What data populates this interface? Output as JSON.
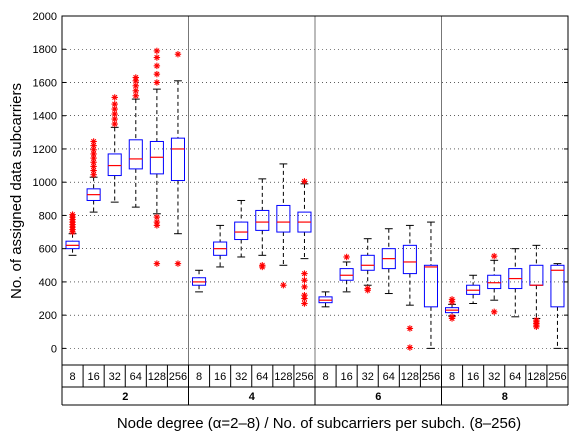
{
  "chart_data": {
    "type": "box",
    "ylabel": "No. of assigned data subcarriers",
    "xlabel": "Node degree (α=2–8) / No. of subcarriers per subch. (8–256)",
    "ylim": [
      -100,
      2000
    ],
    "yticks": [
      0,
      200,
      400,
      600,
      800,
      1000,
      1200,
      1400,
      1600,
      1800,
      2000
    ],
    "grid": true,
    "groups": [
      {
        "label": "2",
        "boxes": [
          {
            "category": "8",
            "whisker_low": 560,
            "q1": 600,
            "median": 620,
            "q3": 645,
            "whisker_high": 690,
            "outliers": [
              700,
              715,
              730,
              745,
              760,
              775,
              790,
              805
            ]
          },
          {
            "category": "16",
            "whisker_low": 820,
            "q1": 890,
            "median": 925,
            "q3": 960,
            "whisker_high": 1030,
            "outliers": [
              1045,
              1070,
              1095,
              1120,
              1145,
              1170,
              1195,
              1220,
              1245
            ]
          },
          {
            "category": "32",
            "whisker_low": 880,
            "q1": 1040,
            "median": 1100,
            "q3": 1170,
            "whisker_high": 1330,
            "outliers": [
              1350,
              1380,
              1410,
              1440,
              1470,
              1510
            ]
          },
          {
            "category": "64",
            "whisker_low": 850,
            "q1": 1080,
            "median": 1140,
            "q3": 1255,
            "whisker_high": 1500,
            "outliers": [
              1520,
              1550,
              1580,
              1610,
              1630
            ]
          },
          {
            "category": "128",
            "whisker_low": 810,
            "q1": 1050,
            "median": 1150,
            "q3": 1245,
            "whisker_high": 1560,
            "outliers": [
              510,
              740,
              760,
              790,
              1600,
              1650,
              1700,
              1750,
              1790
            ]
          },
          {
            "category": "256",
            "whisker_low": 690,
            "q1": 1010,
            "median": 1200,
            "q3": 1265,
            "whisker_high": 1610,
            "outliers": [
              510,
              1770
            ]
          }
        ]
      },
      {
        "label": "4",
        "boxes": [
          {
            "category": "8",
            "whisker_low": 340,
            "q1": 380,
            "median": 400,
            "q3": 425,
            "whisker_high": 470,
            "outliers": []
          },
          {
            "category": "16",
            "whisker_low": 490,
            "q1": 560,
            "median": 600,
            "q3": 640,
            "whisker_high": 740,
            "outliers": []
          },
          {
            "category": "32",
            "whisker_low": 550,
            "q1": 655,
            "median": 700,
            "q3": 760,
            "whisker_high": 890,
            "outliers": []
          },
          {
            "category": "64",
            "whisker_low": 560,
            "q1": 710,
            "median": 760,
            "q3": 830,
            "whisker_high": 1020,
            "outliers": [
              490,
              500
            ]
          },
          {
            "category": "128",
            "whisker_low": 500,
            "q1": 700,
            "median": 760,
            "q3": 860,
            "whisker_high": 1110,
            "outliers": [
              380
            ]
          },
          {
            "category": "256",
            "whisker_low": 540,
            "q1": 700,
            "median": 760,
            "q3": 820,
            "whisker_high": 990,
            "outliers": [
              1005,
              450,
              410,
              370,
              320,
              300,
              270
            ]
          }
        ]
      },
      {
        "label": "6",
        "boxes": [
          {
            "category": "8",
            "whisker_low": 250,
            "q1": 275,
            "median": 290,
            "q3": 310,
            "whisker_high": 340,
            "outliers": []
          },
          {
            "category": "16",
            "whisker_low": 340,
            "q1": 410,
            "median": 440,
            "q3": 480,
            "whisker_high": 520,
            "outliers": [
              550
            ]
          },
          {
            "category": "32",
            "whisker_low": 380,
            "q1": 470,
            "median": 500,
            "q3": 560,
            "whisker_high": 660,
            "outliers": [
              350,
              360
            ]
          },
          {
            "category": "64",
            "whisker_low": 330,
            "q1": 480,
            "median": 540,
            "q3": 600,
            "whisker_high": 720,
            "outliers": []
          },
          {
            "category": "128",
            "whisker_low": 260,
            "q1": 450,
            "median": 520,
            "q3": 620,
            "whisker_high": 740,
            "outliers": [
              120,
              5
            ]
          },
          {
            "category": "256",
            "whisker_low": 0,
            "q1": 250,
            "median": 490,
            "q3": 500,
            "whisker_high": 760,
            "outliers": []
          }
        ]
      },
      {
        "label": "8",
        "boxes": [
          {
            "category": "8",
            "whisker_low": 195,
            "q1": 215,
            "median": 230,
            "q3": 245,
            "whisker_high": 265,
            "outliers": [
              180,
              190,
              280,
              295
            ]
          },
          {
            "category": "16",
            "whisker_low": 270,
            "q1": 325,
            "median": 350,
            "q3": 380,
            "whisker_high": 440,
            "outliers": []
          },
          {
            "category": "32",
            "whisker_low": 290,
            "q1": 360,
            "median": 395,
            "q3": 440,
            "whisker_high": 530,
            "outliers": [
              220,
              555
            ]
          },
          {
            "category": "64",
            "whisker_low": 190,
            "q1": 360,
            "median": 420,
            "q3": 480,
            "whisker_high": 600,
            "outliers": []
          },
          {
            "category": "128",
            "whisker_low": 180,
            "q1": 380,
            "median": 380,
            "q3": 500,
            "whisker_high": 620,
            "outliers": [
              130,
              140,
              150,
              160,
              170
            ]
          },
          {
            "category": "256",
            "whisker_low": 0,
            "q1": 250,
            "median": 470,
            "q3": 500,
            "whisker_high": 510,
            "outliers": []
          }
        ]
      }
    ],
    "colors": {
      "box": "#0000ff",
      "median": "#ff0000",
      "outlier": "#ff0000",
      "whisker": "#000000",
      "grid": "#000000",
      "separator": "#777777"
    }
  }
}
